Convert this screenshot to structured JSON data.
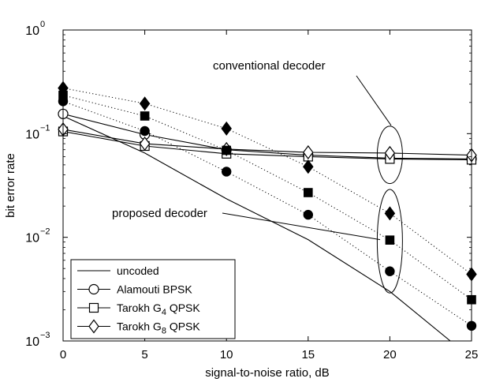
{
  "chart_data": {
    "type": "line",
    "title": "",
    "xlabel": "signal-to-noise ratio, dB",
    "ylabel": "bit error rate",
    "x_ticks": [
      0,
      5,
      10,
      15,
      20,
      25
    ],
    "x_tick_labels": [
      "0",
      "5",
      "10",
      "15",
      "20",
      "25"
    ],
    "xlim": [
      0,
      25
    ],
    "yscale": "log",
    "ylim": [
      0.001,
      1
    ],
    "y_ticks": [
      {
        "value": 1,
        "base": "10",
        "exp": "0"
      },
      {
        "value": 0.1,
        "base": "10",
        "exp": "−1"
      },
      {
        "value": 0.01,
        "base": "10",
        "exp": "−2"
      },
      {
        "value": 0.001,
        "base": "10",
        "exp": "−3"
      }
    ],
    "grid": false,
    "legend_position": "bottom-left",
    "legend": [
      {
        "label": "uncoded",
        "marker": "none"
      },
      {
        "label": "Alamouti BPSK",
        "marker": "circle-open"
      },
      {
        "label_parts": [
          "Tarokh G",
          "4",
          " QPSK"
        ],
        "marker": "square-open"
      },
      {
        "label_parts": [
          "Tarokh G",
          "8",
          " QPSK"
        ],
        "marker": "diamond-open"
      }
    ],
    "series": [
      {
        "name": "uncoded",
        "line": "solid",
        "marker": "none",
        "x": [
          0,
          5,
          10,
          15,
          20,
          23.7
        ],
        "y": [
          0.148,
          0.065,
          0.0235,
          0.0095,
          0.003,
          0.001
        ]
      },
      {
        "name": "Alamouti BPSK",
        "decoder": "conventional",
        "line": "solid",
        "marker": "circle-open",
        "x": [
          0,
          5,
          10,
          15,
          20,
          25
        ],
        "y": [
          0.155,
          0.098,
          0.07,
          0.062,
          0.058,
          0.057
        ]
      },
      {
        "name": "Tarokh G4 QPSK",
        "decoder": "conventional",
        "line": "solid",
        "marker": "square-open",
        "x": [
          0,
          5,
          10,
          15,
          20,
          25
        ],
        "y": [
          0.105,
          0.076,
          0.064,
          0.06,
          0.057,
          0.056
        ]
      },
      {
        "name": "Tarokh G8 QPSK",
        "decoder": "conventional",
        "line": "solid",
        "marker": "diamond-open",
        "x": [
          0,
          5,
          10,
          15,
          20,
          25
        ],
        "y": [
          0.11,
          0.08,
          0.071,
          0.066,
          0.065,
          0.062
        ]
      },
      {
        "name": "Alamouti BPSK",
        "decoder": "proposed",
        "line": "dotted",
        "marker": "circle-filled",
        "x": [
          0,
          5,
          10,
          15,
          20,
          25
        ],
        "y": [
          0.205,
          0.106,
          0.043,
          0.0165,
          0.0047,
          0.0014
        ]
      },
      {
        "name": "Tarokh G4 QPSK",
        "decoder": "proposed",
        "line": "dotted",
        "marker": "square-filled",
        "x": [
          0,
          5,
          10,
          15,
          20,
          25
        ],
        "y": [
          0.235,
          0.148,
          0.069,
          0.027,
          0.0094,
          0.0025
        ]
      },
      {
        "name": "Tarokh G8 QPSK",
        "decoder": "proposed",
        "line": "dotted",
        "marker": "diamond-filled",
        "x": [
          0,
          5,
          10,
          15,
          20,
          25
        ],
        "y": [
          0.275,
          0.195,
          0.112,
          0.048,
          0.017,
          0.0044
        ]
      }
    ],
    "annotations": [
      {
        "text": "conventional decoder",
        "ellipse_center": [
          20,
          0.062
        ],
        "ellipse_y_span": [
          0.033,
          0.118
        ]
      },
      {
        "text": "proposed decoder",
        "ellipse_center": [
          20,
          0.009
        ],
        "ellipse_y_span": [
          0.0029,
          0.029
        ]
      }
    ]
  }
}
